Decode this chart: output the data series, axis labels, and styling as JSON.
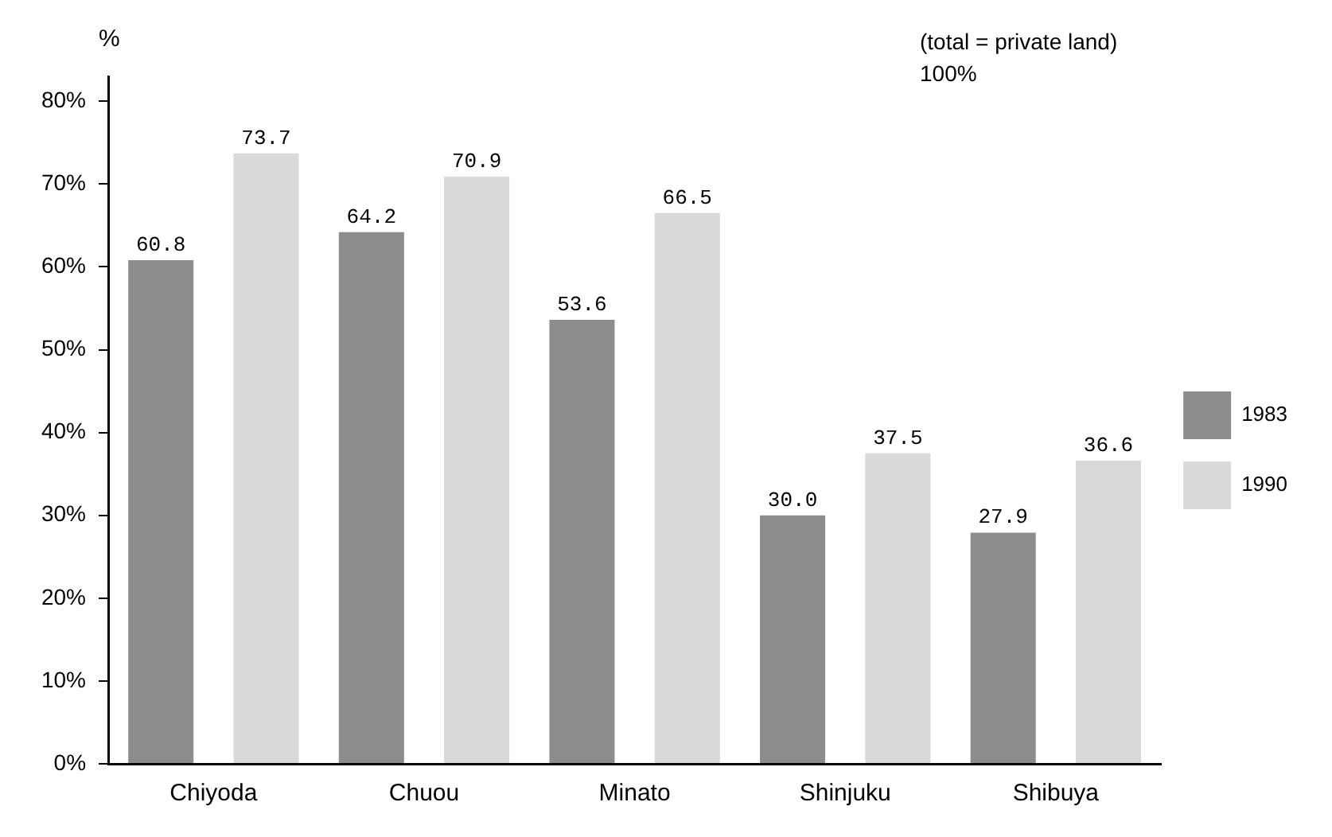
{
  "chart_data": {
    "type": "bar",
    "ylabel": "%",
    "categories": [
      "Chiyoda",
      "Chuou",
      "Minato",
      "Shinjuku",
      "Shibuya"
    ],
    "series": [
      {
        "name": "1983",
        "color": "#8c8c8c",
        "values": [
          60.8,
          64.2,
          53.6,
          30.0,
          27.9
        ],
        "value_labels": [
          "60.8",
          "64.2",
          "53.6",
          "30.0",
          "27.9"
        ]
      },
      {
        "name": "1990",
        "color": "#d9d9d9",
        "values": [
          73.7,
          70.9,
          66.5,
          37.5,
          36.6
        ],
        "value_labels": [
          "73.7",
          "70.9",
          "66.5",
          "37.5",
          "36.6"
        ]
      }
    ],
    "ylim": [
      0,
      83
    ],
    "yticks": [
      {
        "value": 0,
        "label": "0%"
      },
      {
        "value": 10,
        "label": "10%"
      },
      {
        "value": 20,
        "label": "20%"
      },
      {
        "value": 30,
        "label": "30%"
      },
      {
        "value": 40,
        "label": "40%"
      },
      {
        "value": 50,
        "label": "50%"
      },
      {
        "value": 60,
        "label": "60%"
      },
      {
        "value": 70,
        "label": "70%"
      },
      {
        "value": 80,
        "label": "80%"
      }
    ],
    "grid": false,
    "legend": "right",
    "annotations": [
      "(total = private land)",
      "100%"
    ]
  }
}
